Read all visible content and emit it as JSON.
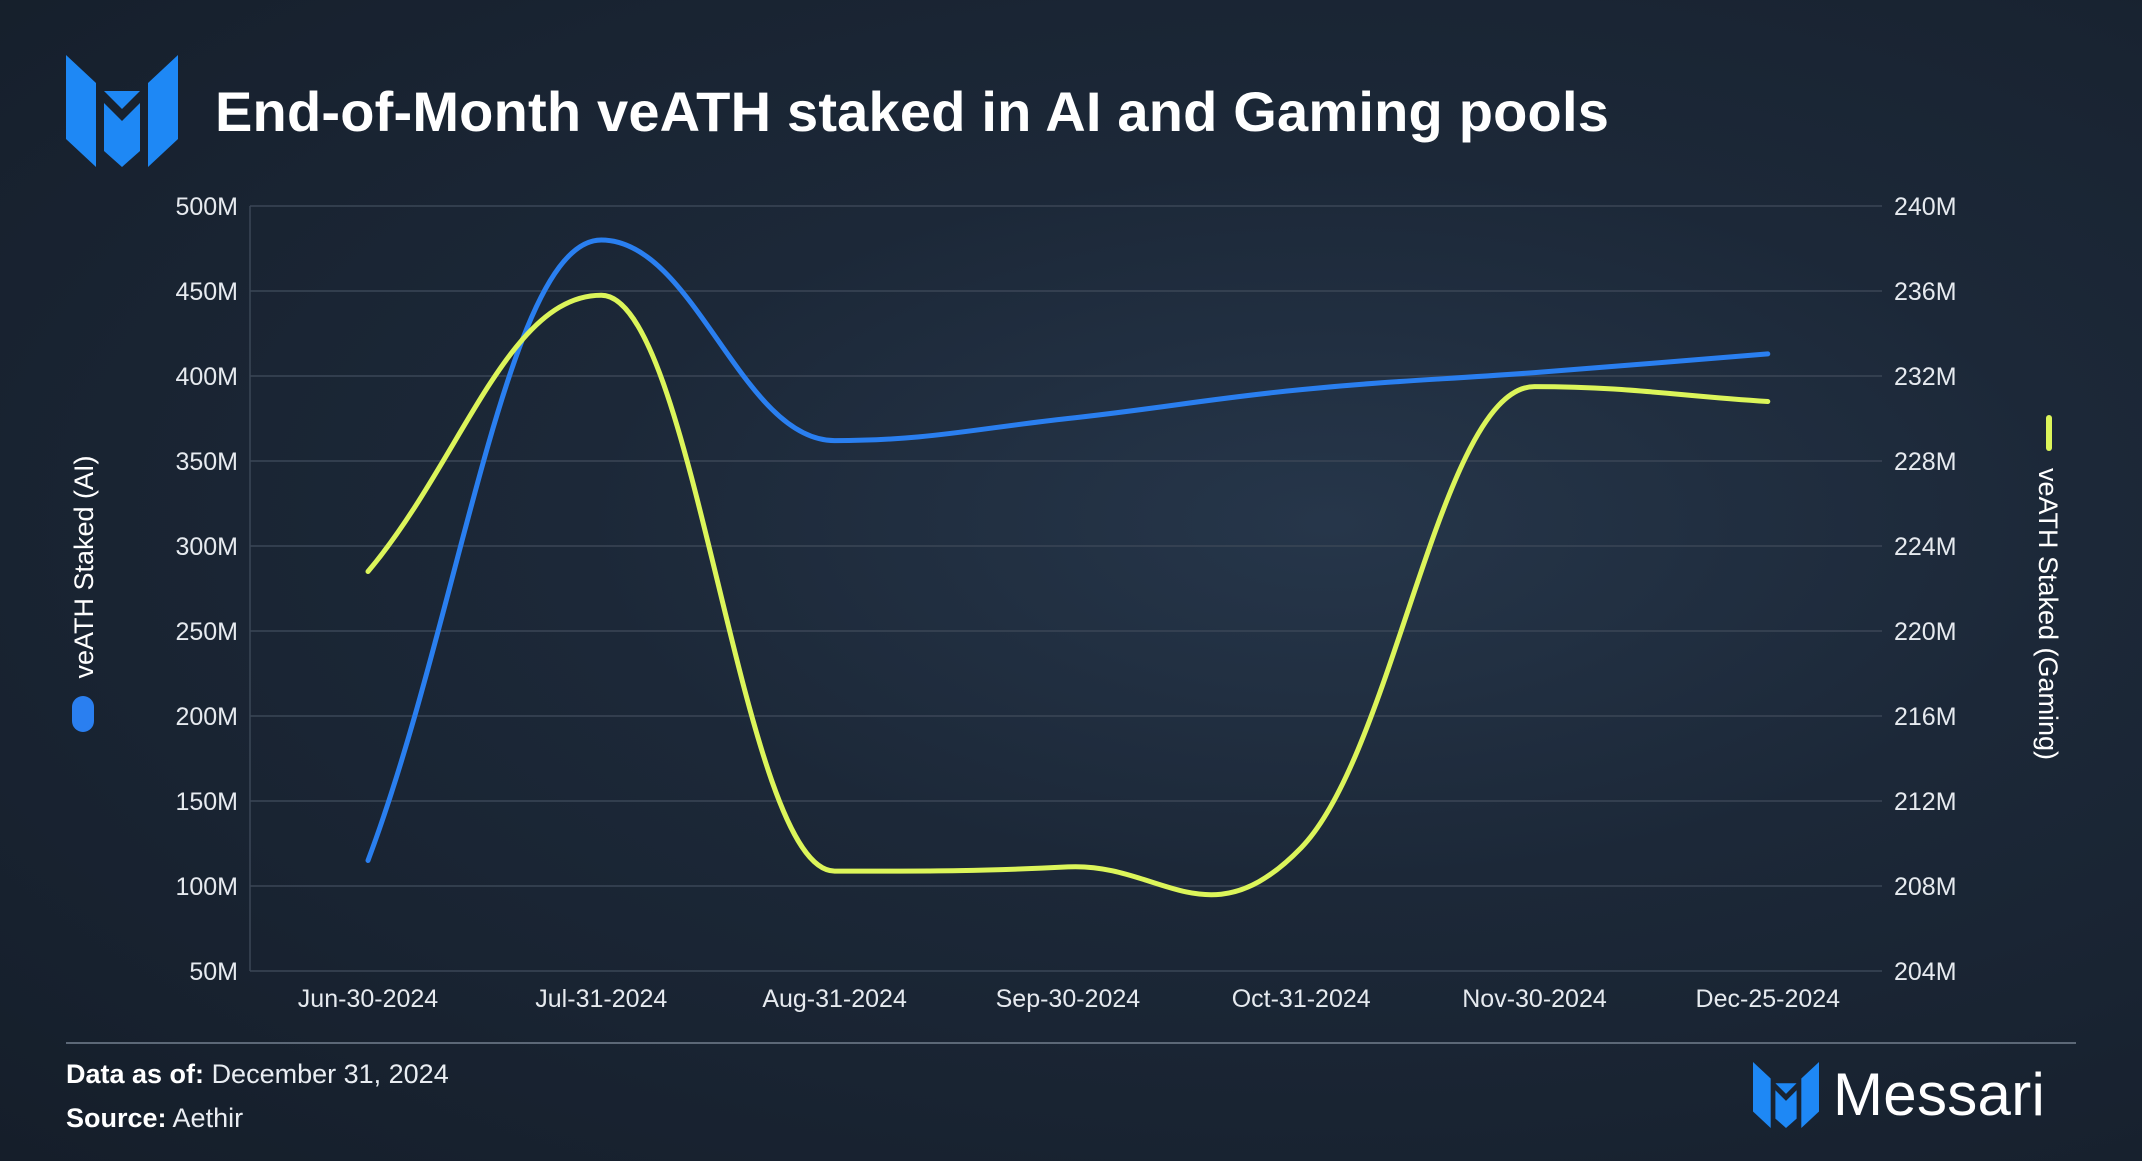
{
  "title": "End-of-Month veATH staked in AI and Gaming pools",
  "colors": {
    "ai": "#2a7ff0",
    "gaming": "#dcf55a",
    "grid": "#3b4656",
    "logo": "#1e88f5"
  },
  "footer": {
    "data_as_of_label": "Data as of:",
    "data_as_of_value": "December 31, 2024",
    "source_label": "Source:",
    "source_value": "Aethir"
  },
  "brand": {
    "name": "Messari",
    "logo_icon": "messari-logo-icon"
  },
  "chart_data": {
    "type": "line",
    "categories": [
      "Jun-30-2024",
      "Jul-31-2024",
      "Aug-31-2024",
      "Sep-30-2024",
      "Oct-31-2024",
      "Nov-30-2024",
      "Dec-25-2024"
    ],
    "y_left": {
      "label": "veATH Staked (AI)",
      "min": 50,
      "max": 500,
      "ticks": [
        "50M",
        "100M",
        "150M",
        "200M",
        "250M",
        "300M",
        "350M",
        "400M",
        "450M",
        "500M"
      ]
    },
    "y_right": {
      "label": "veATH Staked (Gaming)",
      "min": 204,
      "max": 240,
      "ticks": [
        "204M",
        "208M",
        "212M",
        "216M",
        "220M",
        "224M",
        "228M",
        "232M",
        "236M",
        "240M"
      ]
    },
    "series": [
      {
        "name": "veATH Staked (AI)",
        "axis": "left",
        "values": [
          115,
          480,
          362,
          375,
          392,
          402,
          413
        ]
      },
      {
        "name": "veATH Staked (Gaming)",
        "axis": "right",
        "values": [
          222.8,
          235.8,
          208.7,
          208.9,
          209.8,
          231.5,
          230.8
        ]
      }
    ],
    "grid": true
  }
}
